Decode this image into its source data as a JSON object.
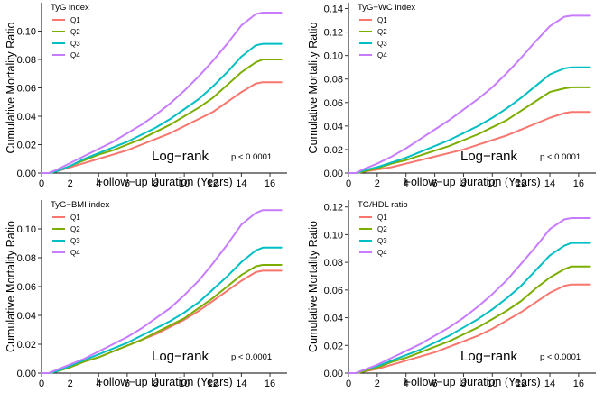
{
  "chart_data": [
    {
      "type": "line",
      "legend_title": "TyG index",
      "xlabel": "Follow−up Duration (Years)",
      "ylabel": "Cumulative Mortality Ratio",
      "xlim": [
        0,
        17.2
      ],
      "ylim": [
        0,
        0.12
      ],
      "x_ticks": [
        0,
        2,
        4,
        6,
        8,
        10,
        12,
        14,
        16
      ],
      "x_tick_labels": [
        "0",
        "2",
        "4",
        "6",
        "8",
        "10",
        "12",
        "14",
        "16"
      ],
      "y_ticks": [
        0,
        0.02,
        0.04,
        0.06,
        0.08,
        0.1
      ],
      "y_tick_labels": [
        "0.00",
        "0.02",
        "0.04",
        "0.06",
        "0.08",
        "0.10"
      ],
      "annotation": "Log−rank",
      "pvalue": "p < 0.0001",
      "legend_position": "top-left",
      "grid": false,
      "series": [
        {
          "name": "Q1",
          "color": "#F8766D",
          "x": [
            0,
            0.5,
            1,
            2,
            3,
            4,
            5,
            6,
            7,
            8,
            9,
            10,
            11,
            12,
            13,
            14,
            15,
            15.5,
            16.8
          ],
          "values": [
            0,
            0,
            0.001,
            0.004,
            0.007,
            0.01,
            0.013,
            0.016,
            0.02,
            0.024,
            0.028,
            0.033,
            0.038,
            0.043,
            0.05,
            0.057,
            0.063,
            0.064,
            0.064
          ]
        },
        {
          "name": "Q2",
          "color": "#7CAE00",
          "x": [
            0,
            0.5,
            1,
            2,
            3,
            4,
            5,
            6,
            7,
            8,
            9,
            10,
            11,
            12,
            13,
            14,
            15,
            15.5,
            16.8
          ],
          "values": [
            0,
            0,
            0.001,
            0.005,
            0.009,
            0.013,
            0.016,
            0.02,
            0.024,
            0.029,
            0.034,
            0.04,
            0.046,
            0.053,
            0.062,
            0.071,
            0.078,
            0.08,
            0.08
          ]
        },
        {
          "name": "Q3",
          "color": "#00BFC4",
          "x": [
            0,
            0.5,
            1,
            2,
            3,
            4,
            5,
            6,
            7,
            8,
            9,
            10,
            11,
            12,
            13,
            14,
            15,
            15.5,
            16.8
          ],
          "values": [
            0,
            0,
            0.001,
            0.005,
            0.01,
            0.014,
            0.018,
            0.022,
            0.027,
            0.032,
            0.038,
            0.045,
            0.052,
            0.061,
            0.071,
            0.082,
            0.09,
            0.091,
            0.091
          ]
        },
        {
          "name": "Q4",
          "color": "#C77CFF",
          "x": [
            0,
            0.5,
            1,
            2,
            3,
            4,
            5,
            6,
            7,
            8,
            9,
            10,
            11,
            12,
            13,
            14,
            15,
            15.5,
            16.8
          ],
          "values": [
            0,
            0,
            0.002,
            0.007,
            0.012,
            0.017,
            0.022,
            0.028,
            0.034,
            0.041,
            0.049,
            0.058,
            0.068,
            0.079,
            0.091,
            0.104,
            0.112,
            0.113,
            0.113
          ]
        }
      ]
    },
    {
      "type": "line",
      "legend_title": "TyG−WC index",
      "xlabel": "Follow−up Duration (Years)",
      "ylabel": "Cumulative Mortality Ratio",
      "xlim": [
        0,
        17.2
      ],
      "ylim": [
        0,
        0.145
      ],
      "x_ticks": [
        0,
        2,
        4,
        6,
        8,
        10,
        12,
        14,
        16
      ],
      "x_tick_labels": [
        "0",
        "2",
        "4",
        "6",
        "8",
        "10",
        "12",
        "14",
        "16"
      ],
      "y_ticks": [
        0,
        0.02,
        0.04,
        0.06,
        0.08,
        0.1,
        0.12,
        0.14
      ],
      "y_tick_labels": [
        "0.00",
        "0.02",
        "0.04",
        "0.06",
        "0.08",
        "0.10",
        "0.12",
        "0.14"
      ],
      "annotation": "Log−rank",
      "pvalue": "p < 0.0001",
      "legend_position": "top-left",
      "grid": false,
      "series": [
        {
          "name": "Q1",
          "color": "#F8766D",
          "x": [
            0,
            0.5,
            1,
            2,
            3,
            4,
            5,
            6,
            7,
            8,
            9,
            10,
            11,
            12,
            13,
            14,
            15,
            15.5,
            16.8
          ],
          "values": [
            0,
            0,
            0.001,
            0.003,
            0.005,
            0.008,
            0.011,
            0.014,
            0.017,
            0.02,
            0.024,
            0.028,
            0.032,
            0.037,
            0.042,
            0.047,
            0.051,
            0.052,
            0.052
          ]
        },
        {
          "name": "Q2",
          "color": "#7CAE00",
          "x": [
            0,
            0.5,
            1,
            2,
            3,
            4,
            5,
            6,
            7,
            8,
            9,
            10,
            11,
            12,
            13,
            14,
            15,
            15.5,
            16.8
          ],
          "values": [
            0,
            0,
            0.001,
            0.004,
            0.008,
            0.011,
            0.015,
            0.019,
            0.023,
            0.028,
            0.033,
            0.039,
            0.045,
            0.053,
            0.061,
            0.069,
            0.072,
            0.073,
            0.073
          ]
        },
        {
          "name": "Q3",
          "color": "#00BFC4",
          "x": [
            0,
            0.5,
            1,
            2,
            3,
            4,
            5,
            6,
            7,
            8,
            9,
            10,
            11,
            12,
            13,
            14,
            15,
            15.5,
            16.8
          ],
          "values": [
            0,
            0,
            0.002,
            0.005,
            0.009,
            0.013,
            0.018,
            0.023,
            0.028,
            0.034,
            0.04,
            0.047,
            0.055,
            0.064,
            0.074,
            0.084,
            0.089,
            0.09,
            0.09
          ]
        },
        {
          "name": "Q4",
          "color": "#C77CFF",
          "x": [
            0,
            0.5,
            1,
            2,
            3,
            4,
            5,
            6,
            7,
            8,
            9,
            10,
            11,
            12,
            13,
            14,
            15,
            15.5,
            16.8
          ],
          "values": [
            0,
            0,
            0.003,
            0.008,
            0.014,
            0.021,
            0.029,
            0.037,
            0.045,
            0.054,
            0.063,
            0.073,
            0.085,
            0.098,
            0.112,
            0.125,
            0.133,
            0.134,
            0.134
          ]
        }
      ]
    },
    {
      "type": "line",
      "legend_title": "TyG−BMI index",
      "xlabel": "Follow−up Duration (Years)",
      "ylabel": "Cumulative Mortality Ratio",
      "xlim": [
        0,
        17.2
      ],
      "ylim": [
        0,
        0.12
      ],
      "x_ticks": [
        0,
        2,
        4,
        6,
        8,
        10,
        12,
        14,
        16
      ],
      "x_tick_labels": [
        "0",
        "2",
        "4",
        "6",
        "8",
        "10",
        "12",
        "14",
        "16"
      ],
      "y_ticks": [
        0,
        0.02,
        0.04,
        0.06,
        0.08,
        0.1
      ],
      "y_tick_labels": [
        "0.00",
        "0.02",
        "0.04",
        "0.06",
        "0.08",
        "0.10"
      ],
      "annotation": "Log−rank",
      "pvalue": "p < 0.0001",
      "legend_position": "top-left",
      "grid": false,
      "series": [
        {
          "name": "Q1",
          "color": "#F8766D",
          "x": [
            0,
            0.5,
            1,
            2,
            3,
            4,
            5,
            6,
            7,
            8,
            9,
            10,
            11,
            12,
            13,
            14,
            15,
            15.5,
            16.8
          ],
          "values": [
            0,
            0,
            0.001,
            0.004,
            0.008,
            0.011,
            0.015,
            0.019,
            0.023,
            0.027,
            0.032,
            0.037,
            0.043,
            0.05,
            0.057,
            0.064,
            0.07,
            0.071,
            0.071
          ]
        },
        {
          "name": "Q2",
          "color": "#7CAE00",
          "x": [
            0,
            0.5,
            1,
            2,
            3,
            4,
            5,
            6,
            7,
            8,
            9,
            10,
            11,
            12,
            13,
            14,
            15,
            15.5,
            16.8
          ],
          "values": [
            0,
            0,
            0.001,
            0.004,
            0.008,
            0.011,
            0.015,
            0.019,
            0.023,
            0.028,
            0.033,
            0.038,
            0.045,
            0.052,
            0.06,
            0.068,
            0.074,
            0.075,
            0.075
          ]
        },
        {
          "name": "Q3",
          "color": "#00BFC4",
          "x": [
            0,
            0.5,
            1,
            2,
            3,
            4,
            5,
            6,
            7,
            8,
            9,
            10,
            11,
            12,
            13,
            14,
            15,
            15.5,
            16.8
          ],
          "values": [
            0,
            0,
            0.001,
            0.005,
            0.009,
            0.013,
            0.017,
            0.021,
            0.026,
            0.031,
            0.036,
            0.042,
            0.049,
            0.058,
            0.067,
            0.077,
            0.085,
            0.087,
            0.087
          ]
        },
        {
          "name": "Q4",
          "color": "#C77CFF",
          "x": [
            0,
            0.5,
            1,
            2,
            3,
            4,
            5,
            6,
            7,
            8,
            9,
            10,
            11,
            12,
            13,
            14,
            15,
            15.5,
            16.8
          ],
          "values": [
            0,
            0,
            0.002,
            0.006,
            0.01,
            0.015,
            0.02,
            0.025,
            0.031,
            0.038,
            0.045,
            0.054,
            0.064,
            0.076,
            0.089,
            0.103,
            0.111,
            0.113,
            0.113
          ]
        }
      ]
    },
    {
      "type": "line",
      "legend_title": "TG/HDL ratio",
      "xlabel": "Follow−up Duration (Years)",
      "ylabel": "Cumulative Mortality Ratio",
      "xlim": [
        0,
        17.2
      ],
      "ylim": [
        0,
        0.125
      ],
      "x_ticks": [
        0,
        2,
        4,
        6,
        8,
        10,
        12,
        14,
        16
      ],
      "x_tick_labels": [
        "0",
        "2",
        "4",
        "6",
        "8",
        "10",
        "12",
        "14",
        "16"
      ],
      "y_ticks": [
        0,
        0.02,
        0.04,
        0.06,
        0.08,
        0.1,
        0.12
      ],
      "y_tick_labels": [
        "0.00",
        "0.02",
        "0.04",
        "0.06",
        "0.08",
        "0.10",
        "0.12"
      ],
      "annotation": "Log−rank",
      "pvalue": "p < 0.0001",
      "legend_position": "top-left",
      "grid": false,
      "series": [
        {
          "name": "Q1",
          "color": "#F8766D",
          "x": [
            0,
            0.5,
            1,
            2,
            3,
            4,
            5,
            6,
            7,
            8,
            9,
            10,
            11,
            12,
            13,
            14,
            15,
            15.5,
            16.8
          ],
          "values": [
            0,
            0,
            0.001,
            0.003,
            0.006,
            0.009,
            0.012,
            0.015,
            0.019,
            0.023,
            0.027,
            0.032,
            0.038,
            0.044,
            0.051,
            0.058,
            0.063,
            0.064,
            0.064
          ]
        },
        {
          "name": "Q2",
          "color": "#7CAE00",
          "x": [
            0,
            0.5,
            1,
            2,
            3,
            4,
            5,
            6,
            7,
            8,
            9,
            10,
            11,
            12,
            13,
            14,
            15,
            15.5,
            16.8
          ],
          "values": [
            0,
            0,
            0.001,
            0.004,
            0.008,
            0.011,
            0.015,
            0.019,
            0.023,
            0.028,
            0.033,
            0.039,
            0.045,
            0.052,
            0.061,
            0.069,
            0.075,
            0.077,
            0.077
          ]
        },
        {
          "name": "Q3",
          "color": "#00BFC4",
          "x": [
            0,
            0.5,
            1,
            2,
            3,
            4,
            5,
            6,
            7,
            8,
            9,
            10,
            11,
            12,
            13,
            14,
            15,
            15.5,
            16.8
          ],
          "values": [
            0,
            0,
            0.002,
            0.005,
            0.009,
            0.013,
            0.017,
            0.022,
            0.027,
            0.033,
            0.039,
            0.046,
            0.054,
            0.063,
            0.074,
            0.085,
            0.092,
            0.094,
            0.094
          ]
        },
        {
          "name": "Q4",
          "color": "#C77CFF",
          "x": [
            0,
            0.5,
            1,
            2,
            3,
            4,
            5,
            6,
            7,
            8,
            9,
            10,
            11,
            12,
            13,
            14,
            15,
            15.5,
            16.8
          ],
          "values": [
            0,
            0,
            0.002,
            0.006,
            0.011,
            0.016,
            0.021,
            0.027,
            0.033,
            0.04,
            0.048,
            0.057,
            0.067,
            0.079,
            0.091,
            0.104,
            0.111,
            0.112,
            0.112
          ]
        }
      ]
    }
  ]
}
